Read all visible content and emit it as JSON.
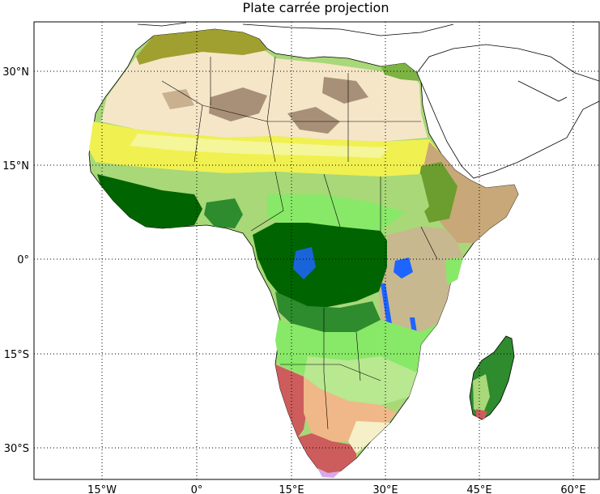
{
  "title": "Plate carrée projection",
  "latitude_labels": [
    "30°N",
    "15°N",
    "0°",
    "15°S",
    "30°S"
  ],
  "longitude_labels": [
    "15°W",
    "0°",
    "15°E",
    "30°E",
    "45°E",
    "60°E"
  ],
  "colors": {
    "desert_light": "#f5e6c8",
    "sparse_veg_brown": "#a89078",
    "sahel_yellow": "#f0f050",
    "savanna_light_green": "#a8d878",
    "woodland_green": "#88e868",
    "rainforest_dark": "#006400",
    "forest_mid": "#2e8b2e",
    "water_blue": "#1e64ff",
    "shrub_salmon": "#f0b888",
    "arid_red": "#cd5c5c",
    "coast_olive": "#a0a030",
    "east_tan": "#c8a878"
  }
}
